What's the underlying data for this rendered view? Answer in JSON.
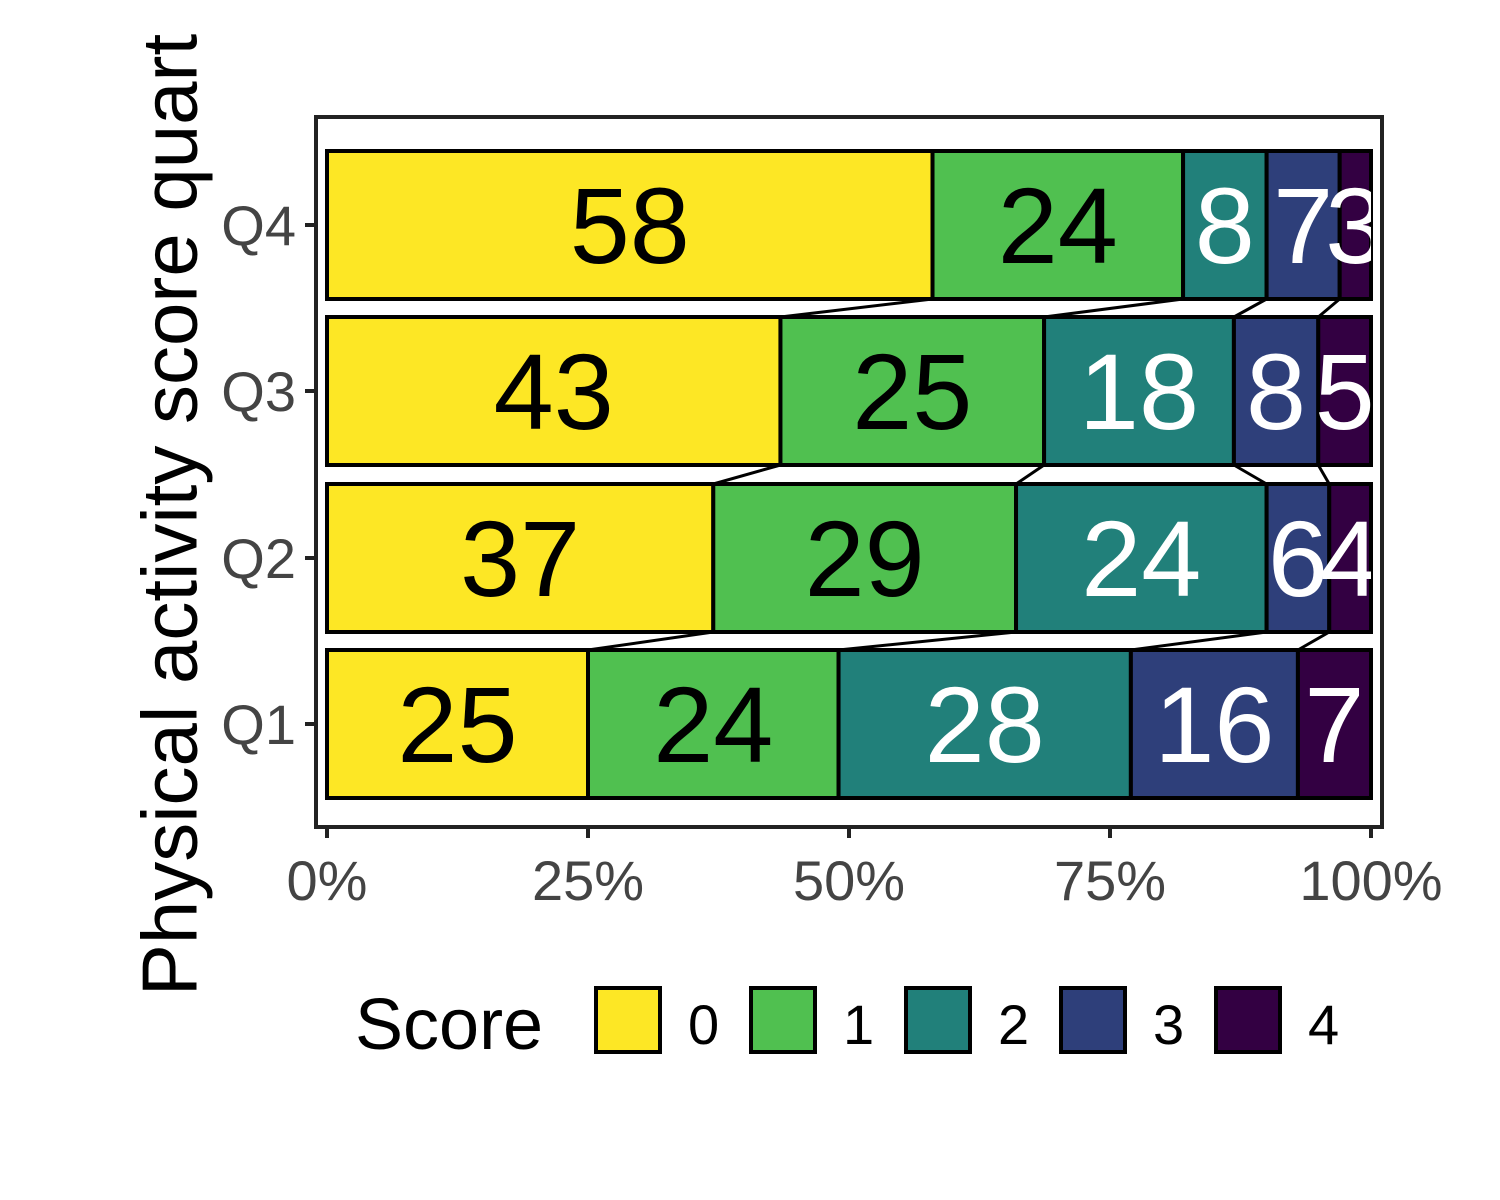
{
  "chart_data": {
    "type": "bar",
    "orientation": "horizontal",
    "stacked": true,
    "percent": true,
    "categories": [
      "Q1",
      "Q2",
      "Q3",
      "Q4"
    ],
    "series": [
      {
        "name": "0",
        "color": "#FDE725",
        "label_color": "#000000",
        "values": [
          25,
          37,
          43,
          58
        ]
      },
      {
        "name": "1",
        "color": "#50C050",
        "label_color": "#000000",
        "values": [
          24,
          29,
          25,
          24
        ]
      },
      {
        "name": "2",
        "color": "#21807A",
        "label_color": "#ffffff",
        "values": [
          28,
          24,
          18,
          8
        ]
      },
      {
        "name": "3",
        "color": "#2E3F7A",
        "label_color": "#ffffff",
        "values": [
          16,
          6,
          8,
          7
        ]
      },
      {
        "name": "4",
        "color": "#330042",
        "label_color": "#ffffff",
        "values": [
          7,
          4,
          5,
          3
        ]
      }
    ],
    "x_ticks": [
      "0%",
      "25%",
      "50%",
      "75%",
      "100%"
    ],
    "xlim": [
      0,
      100
    ],
    "ylabel": "Physical activity score quart",
    "xlabel": "",
    "legend": {
      "title": "Score",
      "position": "bottom"
    },
    "grid": false,
    "flow_lines": true
  }
}
